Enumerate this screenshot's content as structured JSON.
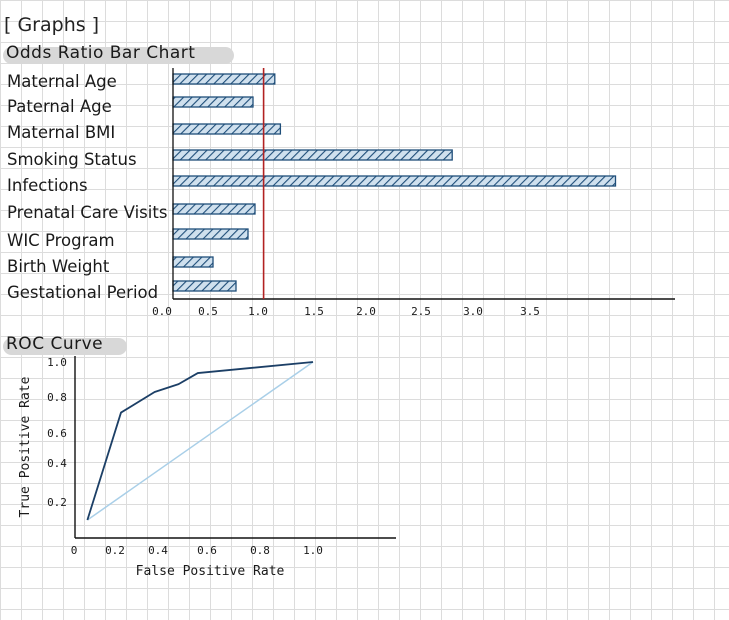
{
  "page": {
    "section_title": "[ Graphs ]"
  },
  "colors": {
    "bar_fill": "#cfe0ee",
    "bar_stroke": "#1f4e79",
    "hatch": "#1f4e79",
    "ref_line": "#b22222",
    "roc_curve": "#1c3f66",
    "roc_diagonal": "#a9cfe8",
    "axis": "#111111"
  },
  "chart_data": [
    {
      "type": "bar",
      "orientation": "horizontal",
      "title": "Odds Ratio Bar Chart",
      "categories": [
        "Maternal Age",
        "Paternal Age",
        "Maternal BMI",
        "Smoking Status",
        "Infections",
        "Prenatal Care Visits",
        "WIC Program",
        "Birth Weight",
        "Gestational Period"
      ],
      "values": [
        1.15,
        0.95,
        1.2,
        2.8,
        4.25,
        0.97,
        0.9,
        0.55,
        0.78
      ],
      "xticks": [
        "0.0",
        "0.5",
        "1.0",
        "1.5",
        "2.0",
        "2.5",
        "3.0",
        "3.5"
      ],
      "xtick_values": [
        0,
        0.5,
        1.0,
        1.5,
        2.0,
        2.5,
        3.0,
        3.5
      ],
      "reference_line": 1.05,
      "xlim": [
        0,
        6.0
      ],
      "grid": false
    },
    {
      "type": "line",
      "title": "ROC Curve",
      "xlabel": "False Positive Rate",
      "ylabel": "True Positive Rate",
      "xticks": [
        "0",
        "0.2",
        "0.4",
        "0.6",
        "0.8",
        "1.0"
      ],
      "xtick_values": [
        0,
        0.2,
        0.4,
        0.6,
        0.8,
        1.0
      ],
      "yticks": [
        "0.2",
        "0.4",
        "0.6",
        "0.8",
        "1.0"
      ],
      "ytick_values": [
        0.2,
        0.4,
        0.6,
        0.8,
        1.0
      ],
      "xlim": [
        0,
        1.0
      ],
      "ylim": [
        0,
        1.0
      ],
      "series": [
        {
          "x": [
            0.06,
            0.2,
            0.34,
            0.44,
            0.52,
            1.0
          ],
          "y": [
            0.0,
            0.68,
            0.81,
            0.86,
            0.93,
            1.0
          ]
        },
        {
          "x": [
            0.06,
            1.0
          ],
          "y": [
            0.0,
            1.0
          ]
        }
      ],
      "grid": false
    }
  ]
}
